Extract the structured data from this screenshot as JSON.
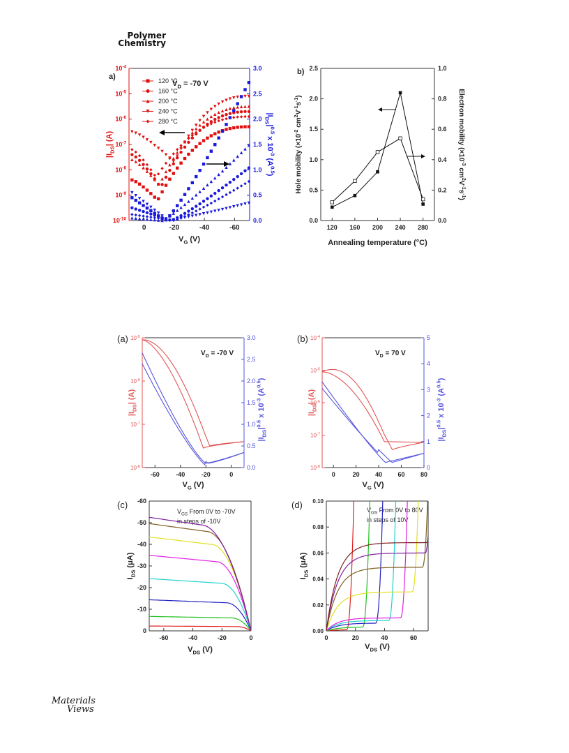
{
  "header": {
    "journal_line1": "Polymer",
    "journal_line2": "Chemistry"
  },
  "logo": {
    "line1": "Materials",
    "line2": "Views"
  },
  "colors": {
    "red": "#e01010",
    "blue": "#1a1adc",
    "panelRed": "#e05555",
    "panelBlue": "#5555dd"
  },
  "chart_data": [
    {
      "id": "top-a",
      "type": "scatter",
      "panel_label": "a)",
      "annotation": "V_D = -70 V",
      "xlabel": "V_G (V)",
      "ylabel_left": "|I_DS| (A)",
      "ylabel_right": "|I_DS|^0.5 x 10^-3 (A^0.5)",
      "xticks": [
        "0",
        "-20",
        "-40",
        "-60"
      ],
      "xlim": [
        10,
        -70
      ],
      "ylim_left_log": [
        -10,
        -4
      ],
      "yticks_left": [
        "10^-10",
        "10^-9",
        "10^-8",
        "10^-7",
        "10^-6",
        "10^-5",
        "10^-4"
      ],
      "ylim_right": [
        0,
        3.0
      ],
      "yticks_right": [
        "0.0",
        "0.5",
        "1.0",
        "1.5",
        "2.0",
        "2.5",
        "3.0"
      ],
      "legend": [
        "120 °C",
        "160 °C",
        "200 °C",
        "240 °C",
        "280 °C"
      ],
      "legend_markers": [
        "square",
        "circle",
        "triangle-up",
        "triangle-down",
        "diamond"
      ]
    },
    {
      "id": "top-b",
      "type": "line",
      "panel_label": "b)",
      "xlabel": "Annealing temperature (°C)",
      "ylabel_left": "Hole mobility (×10^-2 cm^2V^-1s^-1)",
      "ylabel_right": "Electron mobility (×10^-3 cm^2V^-1s^-1)",
      "x": [
        120,
        160,
        200,
        240,
        280
      ],
      "xticks": [
        "120",
        "160",
        "200",
        "240",
        "280"
      ],
      "xlim": [
        100,
        300
      ],
      "ylim_left": [
        0,
        2.5
      ],
      "yticks_left": [
        "0.0",
        "0.5",
        "1.0",
        "1.5",
        "2.0",
        "2.5"
      ],
      "ylim_right": [
        0,
        1.0
      ],
      "yticks_right": [
        "0.0",
        "0.2",
        "0.4",
        "0.6",
        "0.8",
        "1.0"
      ],
      "series": [
        {
          "axis": "left",
          "marker": "filled-square",
          "values": [
            0.22,
            0.41,
            0.8,
            2.1,
            0.27
          ]
        },
        {
          "axis": "right",
          "marker": "open-square",
          "values": [
            0.12,
            0.26,
            0.45,
            0.54,
            0.14
          ]
        }
      ]
    },
    {
      "id": "bottom-a",
      "type": "line",
      "panel_label": "(a)",
      "annotation": "V_D = -70 V",
      "xlabel": "V_G (V)",
      "ylabel_left": "|I_DS| (A)",
      "ylabel_right": "|I_DS|^0.5 x 10^-3 (A^0.5)",
      "xlim": [
        -70,
        10
      ],
      "xticks": [
        "-60",
        "-40",
        "-20",
        "0"
      ],
      "ylim_left_log": [
        -8,
        -5
      ],
      "yticks_left": [
        "10^-8",
        "10^-7",
        "10^-6",
        "10^-5"
      ],
      "ylim_right": [
        0,
        3.0
      ],
      "yticks_right": [
        "0.0",
        "0.5",
        "1.0",
        "1.5",
        "2.0",
        "2.5",
        "3.0"
      ]
    },
    {
      "id": "bottom-b",
      "type": "line",
      "panel_label": "(b)",
      "annotation": "V_D = 70 V",
      "xlabel": "V_G (V)",
      "ylabel_left": "|I_DS| (A)",
      "ylabel_right": "|I_DS|^0.5 x 10^-3 (A^0.5)",
      "xlim": [
        -10,
        80
      ],
      "xticks": [
        "0",
        "20",
        "40",
        "60",
        "80"
      ],
      "ylim_left_log": [
        -8,
        -4
      ],
      "yticks_left": [
        "10^-8",
        "10^-7",
        "10^-6",
        "10^-5",
        "10^-4"
      ],
      "ylim_right": [
        0,
        5
      ],
      "yticks_right": [
        "0",
        "1",
        "2",
        "3",
        "4",
        "5"
      ]
    },
    {
      "id": "bottom-c",
      "type": "line",
      "panel_label": "(c)",
      "annotation_line1": "V_GS From 0V to -70V",
      "annotation_line2": "in steps of -10V",
      "xlabel": "V_DS (V)",
      "ylabel": "I_DS (μA)",
      "xlim": [
        -70,
        0
      ],
      "xticks": [
        "-60",
        "-40",
        "-20",
        "0"
      ],
      "ylim": [
        0,
        -60
      ],
      "yticks": [
        "0",
        "-10",
        "-20",
        "-30",
        "-40",
        "-50",
        "-60"
      ],
      "saturation_uA": [
        -2,
        -6,
        -13,
        -22,
        -32,
        -40,
        -46,
        -49
      ],
      "colors": [
        "#e02020",
        "#20c020",
        "#2020c0",
        "#20d0d0",
        "#e020e0",
        "#e0e020",
        "#806020",
        "#8020a0"
      ]
    },
    {
      "id": "bottom-d",
      "type": "line",
      "panel_label": "(d)",
      "annotation_line1": "V_GS From 0V to 80V",
      "annotation_line2": "in steps of 10V",
      "xlabel": "V_DS (V)",
      "ylabel": "I_DS (μA)",
      "xlim": [
        0,
        70
      ],
      "xticks": [
        "0",
        "20",
        "40",
        "60"
      ],
      "ylim": [
        0,
        0.1
      ],
      "yticks": [
        "0.00",
        "0.02",
        "0.04",
        "0.06",
        "0.08",
        "0.10"
      ],
      "curves": [
        {
          "color": "#e02020",
          "onset": 14,
          "plateau": 0.001
        },
        {
          "color": "#20c020",
          "onset": 25,
          "plateau": 0.003
        },
        {
          "color": "#2020c0",
          "onset": 34,
          "plateau": 0.006
        },
        {
          "color": "#20d0d0",
          "onset": 43,
          "plateau": 0.008
        },
        {
          "color": "#e020e0",
          "onset": 51,
          "plateau": 0.01
        },
        {
          "color": "#e0e020",
          "onset": 59,
          "plateau": 0.03
        },
        {
          "color": "#806020",
          "onset": 66,
          "plateau": 0.049
        },
        {
          "color": "#8020a0",
          "onset": 68,
          "plateau": 0.06
        },
        {
          "color": "#802020",
          "onset": 69,
          "plateau": 0.068
        }
      ]
    }
  ]
}
